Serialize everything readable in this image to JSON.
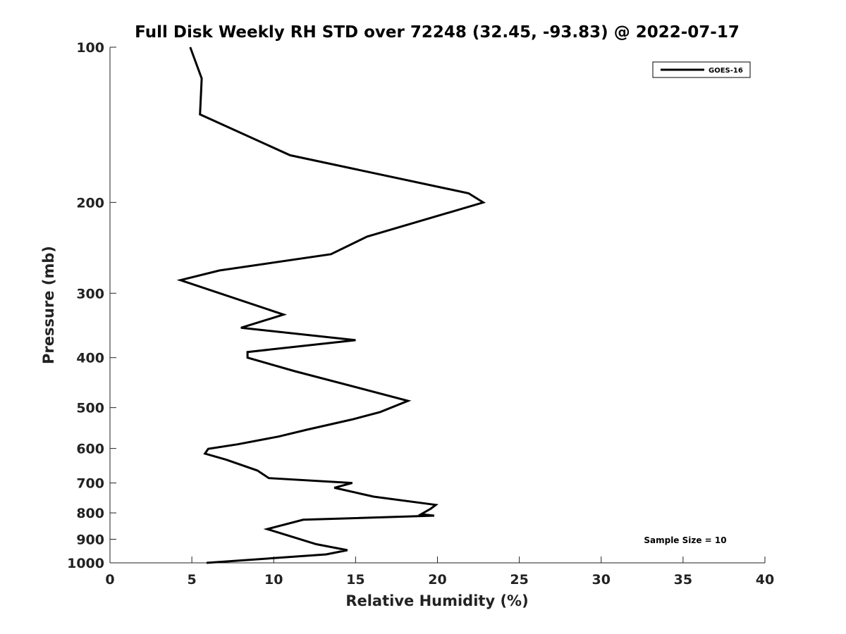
{
  "chart_data": {
    "type": "line",
    "title": "Full Disk Weekly RH STD over 72248 (32.45, -93.83) @ 2022-07-17",
    "xlabel": "Relative Humidity (%)",
    "ylabel": "Pressure (mb)",
    "xlim": [
      0,
      40
    ],
    "ylim": [
      100,
      1000
    ],
    "y_scale": "log",
    "y_inverted": true,
    "x_ticks": [
      0,
      5,
      10,
      15,
      20,
      25,
      30,
      35,
      40
    ],
    "y_ticks": [
      100,
      200,
      300,
      400,
      500,
      600,
      700,
      800,
      900,
      1000
    ],
    "grid": false,
    "legend_position": "top-right",
    "annotation": "Sample Size = 10",
    "series": [
      {
        "name": "GOES-16",
        "color": "#000000",
        "points": [
          [
            4.9,
            100
          ],
          [
            5.6,
            115
          ],
          [
            5.5,
            135
          ],
          [
            11.0,
            162
          ],
          [
            21.9,
            192
          ],
          [
            22.8,
            200
          ],
          [
            15.7,
            233
          ],
          [
            13.5,
            252
          ],
          [
            6.7,
            271
          ],
          [
            4.3,
            283
          ],
          [
            10.6,
            330
          ],
          [
            8.0,
            350
          ],
          [
            15.0,
            370
          ],
          [
            8.4,
            390
          ],
          [
            8.4,
            400
          ],
          [
            11.3,
            425
          ],
          [
            18.2,
            485
          ],
          [
            16.5,
            510
          ],
          [
            14.8,
            527
          ],
          [
            12.0,
            552
          ],
          [
            10.3,
            569
          ],
          [
            7.8,
            589
          ],
          [
            6.0,
            601
          ],
          [
            5.8,
            614
          ],
          [
            7.1,
            631
          ],
          [
            9.0,
            662
          ],
          [
            9.7,
            685
          ],
          [
            14.8,
            700
          ],
          [
            13.7,
            715
          ],
          [
            16.1,
            744
          ],
          [
            19.9,
            772
          ],
          [
            19.6,
            785
          ],
          [
            19.0,
            805
          ],
          [
            19.8,
            810
          ],
          [
            11.8,
            825
          ],
          [
            9.6,
            860
          ],
          [
            12.6,
            920
          ],
          [
            14.5,
            945
          ],
          [
            13.2,
            963
          ],
          [
            5.9,
            1000
          ]
        ]
      }
    ]
  }
}
